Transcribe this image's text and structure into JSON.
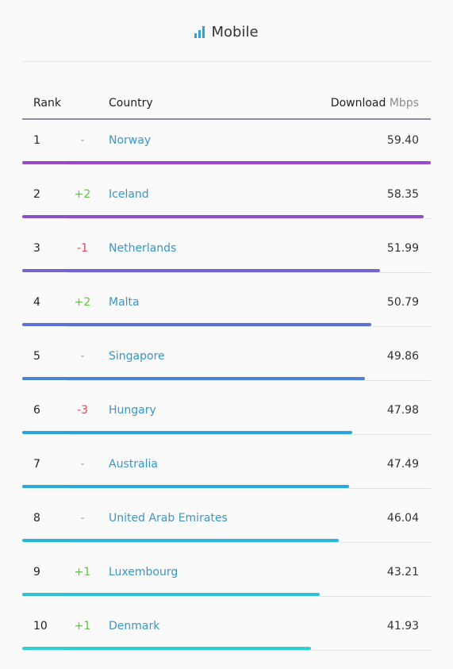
{
  "header": {
    "title": "Mobile",
    "icon": "signal-bars-icon",
    "accent": "#2ba3d8"
  },
  "columns": {
    "rank": "Rank",
    "country": "Country",
    "download": "Download",
    "unit": "Mbps"
  },
  "rows": [
    {
      "rank": "1",
      "change": "-",
      "trend": "same",
      "country": "Norway",
      "value": "59.40",
      "color": "#9a48c8"
    },
    {
      "rank": "2",
      "change": "+2",
      "trend": "up",
      "country": "Iceland",
      "value": "58.35",
      "color": "#8d4ec9"
    },
    {
      "rank": "3",
      "change": "-1",
      "trend": "down",
      "country": "Netherlands",
      "value": "51.99",
      "color": "#7263cf"
    },
    {
      "rank": "4",
      "change": "+2",
      "trend": "up",
      "country": "Malta",
      "value": "50.79",
      "color": "#5a72d2"
    },
    {
      "rank": "5",
      "change": "-",
      "trend": "same",
      "country": "Singapore",
      "value": "49.86",
      "color": "#4a82d4"
    },
    {
      "rank": "6",
      "change": "-3",
      "trend": "down",
      "country": "Hungary",
      "value": "47.98",
      "color": "#2aa2dc"
    },
    {
      "rank": "7",
      "change": "-",
      "trend": "same",
      "country": "Australia",
      "value": "47.49",
      "color": "#2aa9dc"
    },
    {
      "rank": "8",
      "change": "-",
      "trend": "same",
      "country": "United Arab Emirates",
      "value": "46.04",
      "color": "#2bb4da"
    },
    {
      "rank": "9",
      "change": "+1",
      "trend": "up",
      "country": "Luxembourg",
      "value": "43.21",
      "color": "#2dc2d6"
    },
    {
      "rank": "10",
      "change": "+1",
      "trend": "up",
      "country": "Denmark",
      "value": "41.93",
      "color": "#30cfd2"
    }
  ],
  "trend_colors": {
    "up": "#63c04a",
    "down": "#e0475b",
    "same": "#aaaaaa"
  }
}
